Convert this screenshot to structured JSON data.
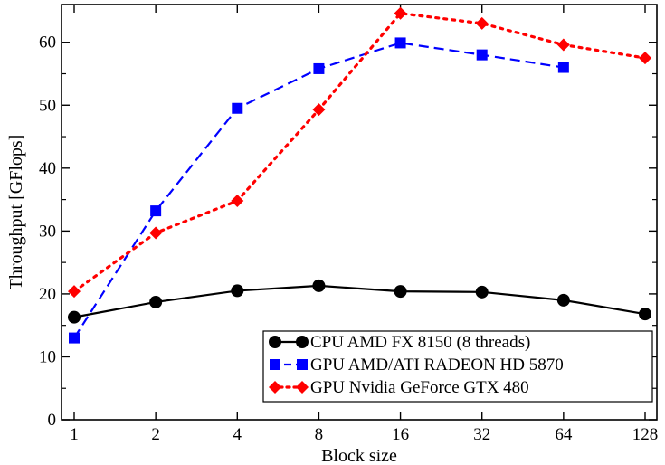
{
  "chart_data": {
    "type": "line",
    "xlabel": "Block size",
    "ylabel": "Throughput [GFlops]",
    "x_categories": [
      "1",
      "2",
      "4",
      "8",
      "16",
      "32",
      "64",
      "128"
    ],
    "ylim": [
      0,
      66
    ],
    "y_ticks": [
      "0",
      "10",
      "20",
      "30",
      "40",
      "50",
      "60"
    ],
    "grid": false,
    "legend_position": "bottom-right",
    "series": [
      {
        "name": "CPU AMD FX 8150 (8 threads)",
        "color": "#000000",
        "line_style": "solid",
        "marker": "circle",
        "values": [
          16.3,
          18.7,
          20.5,
          21.3,
          20.4,
          20.3,
          19.0,
          16.8
        ]
      },
      {
        "name": "GPU AMD/ATI RADEON HD 5870",
        "color": "#0000ff",
        "line_style": "dashed",
        "marker": "square",
        "values": [
          13.0,
          33.2,
          49.5,
          55.8,
          59.9,
          58.0,
          56.0,
          null
        ]
      },
      {
        "name": "GPU Nvidia GeForce GTX 480",
        "color": "#ff0000",
        "line_style": "dotted",
        "marker": "diamond",
        "values": [
          20.4,
          29.7,
          34.8,
          49.3,
          64.6,
          63.0,
          59.6,
          57.5
        ]
      }
    ]
  }
}
